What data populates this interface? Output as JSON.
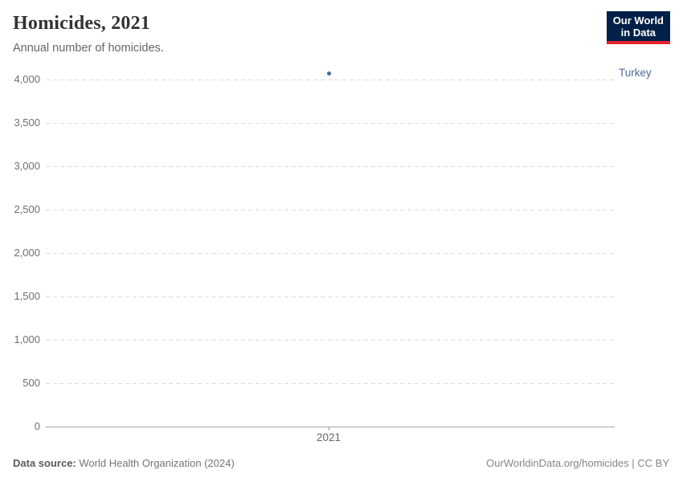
{
  "header": {
    "title": "Homicides, 2021",
    "subtitle": "Annual number of homicides.",
    "logo": {
      "line1": "Our World",
      "line2": "in Data",
      "bg_color": "#002147",
      "accent_color": "#E5232D"
    }
  },
  "chart_data": {
    "type": "scatter",
    "title": "Homicides, 2021",
    "subtitle": "Annual number of homicides.",
    "x": [
      2021
    ],
    "xtick_labels": [
      "2021"
    ],
    "series": [
      {
        "name": "Turkey",
        "values": [
          4070
        ],
        "color": "#4C6A9C"
      }
    ],
    "xlabel": "",
    "ylabel": "",
    "ylim": [
      0,
      4000
    ],
    "yticks": [
      0,
      500,
      1000,
      1500,
      2000,
      2500,
      3000,
      3500,
      4000
    ],
    "ytick_labels": [
      "0",
      "500",
      "1,000",
      "1,500",
      "2,000",
      "2,500",
      "3,000",
      "3,500",
      "4,000"
    ],
    "grid": "horizontal-dashed",
    "legend_position": "right-entity-label"
  },
  "footer": {
    "source_label": "Data source:",
    "source_text": "World Health Organization (2024)",
    "link_text": "OurWorldinData.org/homicides | CC BY"
  },
  "colors": {
    "series_blue": "#4C6A9C",
    "gridline": "#dcdcdc",
    "axis_line": "#a5a5a5",
    "tick_text": "#6e6e6e",
    "logo_bg": "#002147",
    "logo_red": "#E5232D"
  }
}
